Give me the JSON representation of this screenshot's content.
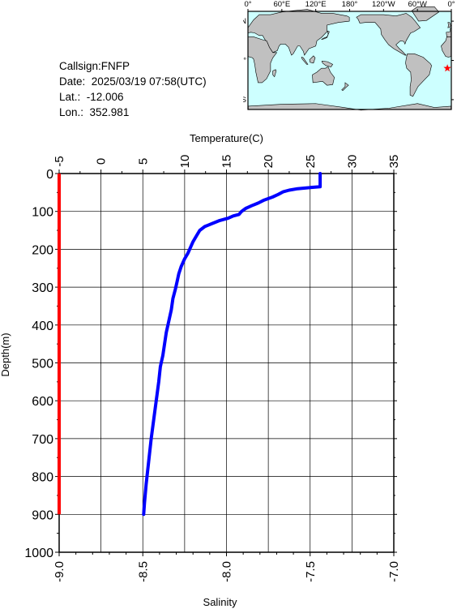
{
  "station": {
    "callsign_text": "Callsign:FNFP",
    "date_text": "Date:  2025/03/19 07:58(UTC)",
    "lat_text": "Lat.:  -12.006",
    "lon_text": "Lon.:  352.981",
    "lat": -12.006,
    "lon": 352.981
  },
  "map": {
    "lon_labels": [
      "0°",
      "60°E",
      "120°E",
      "180°",
      "120°W",
      "60°W",
      "0°"
    ],
    "lat_labels": [
      "60°N",
      "0°",
      "60°S"
    ],
    "ocean_color": "#cdffff",
    "land_color": "#c0c0c0",
    "marker_color": "#ff0000",
    "marker_icon": "star-icon"
  },
  "chart_data": {
    "type": "line",
    "top_axis_label": "Temperature(C)",
    "bottom_axis_label": "Salinity",
    "ylabel": "Depth(m)",
    "temp_ticks": [
      "-5",
      "0",
      "5",
      "10",
      "15",
      "20",
      "25",
      "30",
      "35"
    ],
    "sal_ticks": [
      "-9.0",
      "-8.5",
      "-8.0",
      "-7.5",
      "-7.0"
    ],
    "depth_ticks": [
      "0",
      "100",
      "200",
      "300",
      "400",
      "500",
      "600",
      "700",
      "800",
      "900",
      "1000"
    ],
    "temp_range": [
      -5,
      35
    ],
    "salinity_range": [
      -9.0,
      -7.0
    ],
    "depth_range": [
      0,
      1000
    ],
    "grid": true,
    "series": [
      {
        "color": "#0000ff",
        "points": [
          [
            26.2,
            0
          ],
          [
            26.2,
            35
          ],
          [
            25.0,
            37
          ],
          [
            23.5,
            40
          ],
          [
            22.5,
            44
          ],
          [
            21.8,
            48
          ],
          [
            21.2,
            55
          ],
          [
            20.5,
            62
          ],
          [
            19.5,
            70
          ],
          [
            18.8,
            78
          ],
          [
            18.0,
            85
          ],
          [
            17.3,
            92
          ],
          [
            16.8,
            100
          ],
          [
            16.5,
            108
          ],
          [
            15.8,
            112
          ],
          [
            15.2,
            118
          ],
          [
            14.2,
            124
          ],
          [
            13.3,
            132
          ],
          [
            12.4,
            140
          ],
          [
            11.8,
            150
          ],
          [
            11.4,
            165
          ],
          [
            11.0,
            180
          ],
          [
            10.7,
            195
          ],
          [
            10.4,
            210
          ],
          [
            10.0,
            225
          ],
          [
            9.6,
            245
          ],
          [
            9.3,
            265
          ],
          [
            9.1,
            285
          ],
          [
            8.9,
            305
          ],
          [
            8.6,
            330
          ],
          [
            8.4,
            360
          ],
          [
            8.1,
            390
          ],
          [
            7.8,
            420
          ],
          [
            7.6,
            450
          ],
          [
            7.4,
            480
          ],
          [
            7.1,
            510
          ],
          [
            6.9,
            550
          ],
          [
            6.6,
            600
          ],
          [
            6.3,
            650
          ],
          [
            6.0,
            700
          ],
          [
            5.7,
            760
          ],
          [
            5.4,
            820
          ],
          [
            5.2,
            870
          ],
          [
            5.1,
            900
          ]
        ]
      },
      {
        "color": "#ff0000",
        "points": [
          [
            -9.0,
            0
          ],
          [
            -9.0,
            900
          ]
        ]
      }
    ]
  }
}
